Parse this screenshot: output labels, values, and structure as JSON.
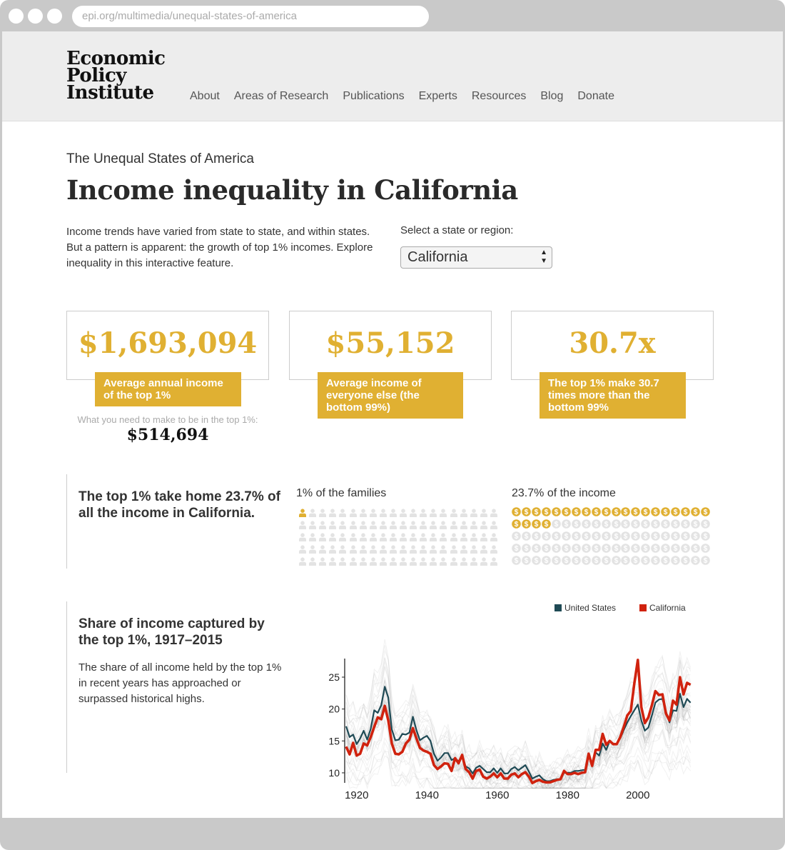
{
  "browser": {
    "url": "epi.org/multimedia/unequal-states-of-america"
  },
  "header": {
    "logo": [
      "Economic",
      "Policy",
      "Institute"
    ],
    "nav": [
      "About",
      "Areas of Research",
      "Publications",
      "Experts",
      "Resources",
      "Blog",
      "Donate"
    ]
  },
  "main": {
    "kicker": "The Unequal States of America",
    "title": "Income inequality in California",
    "intro": "Income trends have varied from state to state, and within states. But a pattern is apparent: the growth of top 1% incomes. Explore inequality in this interactive feature.",
    "select_label": "Select a state or region:",
    "select_value": "California",
    "stats": [
      {
        "value": "$1,693,094",
        "label": "Average annual income of the top 1%"
      },
      {
        "value": "$55,152",
        "label": "Average income of everyone else (the bottom 99%)"
      },
      {
        "value": "30.7x",
        "label": "The top 1% make 30.7 times more than the bottom 99%"
      }
    ],
    "threshold_label": "What you need to make to be in the top 1%:",
    "threshold_value": "$514,694",
    "share": {
      "heading": "The top 1% take home 23.7% of all the income in California.",
      "families_label": "1% of the families",
      "income_label": "23.7% of the income",
      "families_pct": 1,
      "income_pct": 23.7,
      "total_icons": 100
    },
    "trend": {
      "heading": "Share of income captured by the top 1%, 1917–2015",
      "body": "The share of all income held by the top 1% in recent years has approached or surpassed historical highs."
    }
  },
  "colors": {
    "gold": "#e0b032",
    "us": "#1f4a55",
    "ca": "#d0220e",
    "gray_icon": "#e3e3e3"
  },
  "chart_data": {
    "type": "line",
    "title": "Share of income captured by the top 1%, 1917–2015",
    "xlabel": "",
    "ylabel": "",
    "x_start": 1917,
    "x_end": 2015,
    "xticks": [
      1920,
      1940,
      1960,
      1980,
      2000
    ],
    "yticks": [
      10,
      15,
      20,
      25
    ],
    "ylim": [
      8.4,
      27.9
    ],
    "legend_position": "top-right",
    "series": [
      {
        "name": "United States",
        "values": [
          17.3,
          15.6,
          16.0,
          14.5,
          15.4,
          16.6,
          15.2,
          16.9,
          19.8,
          19.4,
          20.6,
          23.5,
          21.8,
          16.8,
          15.1,
          15.2,
          16.1,
          16.0,
          16.3,
          18.8,
          16.7,
          15.1,
          15.5,
          15.8,
          15.0,
          13.0,
          11.9,
          12.4,
          13.1,
          13.1,
          12.0,
          12.3,
          11.8,
          12.8,
          11.0,
          10.7,
          9.9,
          10.8,
          11.1,
          10.6,
          10.1,
          10.1,
          10.7,
          10.0,
          10.7,
          9.9,
          9.9,
          10.6,
          10.9,
          10.4,
          10.8,
          11.2,
          10.2,
          9.1,
          9.4,
          9.6,
          9.0,
          8.7,
          8.7,
          8.9,
          9.0,
          9.0,
          10.0,
          10.0,
          10.0,
          10.3,
          10.3,
          10.4,
          10.5,
          12.6,
          11.5,
          13.2,
          12.7,
          14.6,
          13.6,
          15.0,
          14.5,
          14.6,
          15.4,
          16.7,
          17.9,
          18.9,
          19.8,
          20.7,
          18.2,
          16.6,
          17.1,
          19.0,
          21.0,
          21.5,
          21.6,
          19.6,
          17.9,
          19.8,
          19.7,
          22.4,
          20.3,
          21.6,
          21.0
        ]
      },
      {
        "name": "California",
        "values": [
          14.1,
          12.9,
          14.7,
          12.7,
          13.0,
          14.6,
          14.3,
          15.6,
          17.2,
          18.7,
          18.4,
          20.5,
          18.2,
          14.6,
          13.0,
          12.9,
          13.3,
          14.6,
          15.2,
          17.0,
          15.4,
          13.9,
          13.5,
          13.3,
          13.0,
          11.2,
          10.6,
          11.0,
          11.5,
          11.4,
          10.3,
          12.3,
          11.5,
          12.8,
          10.6,
          10.1,
          9.1,
          10.3,
          10.5,
          9.4,
          9.1,
          9.4,
          9.9,
          9.3,
          9.9,
          9.1,
          9.1,
          9.7,
          9.9,
          9.3,
          9.8,
          10.1,
          9.4,
          8.4,
          8.7,
          8.9,
          8.6,
          8.5,
          8.5,
          8.7,
          8.9,
          9.0,
          10.3,
          9.8,
          9.8,
          10.0,
          9.8,
          10.0,
          10.1,
          13.0,
          11.1,
          13.6,
          13.6,
          16.1,
          14.4,
          15.0,
          14.5,
          14.5,
          15.6,
          17.2,
          19.0,
          19.7,
          24.0,
          27.7,
          20.3,
          17.8,
          18.7,
          20.6,
          22.8,
          22.2,
          22.3,
          19.3,
          18.2,
          21.3,
          20.7,
          25.0,
          22.3,
          24.1,
          23.8
        ]
      }
    ]
  }
}
